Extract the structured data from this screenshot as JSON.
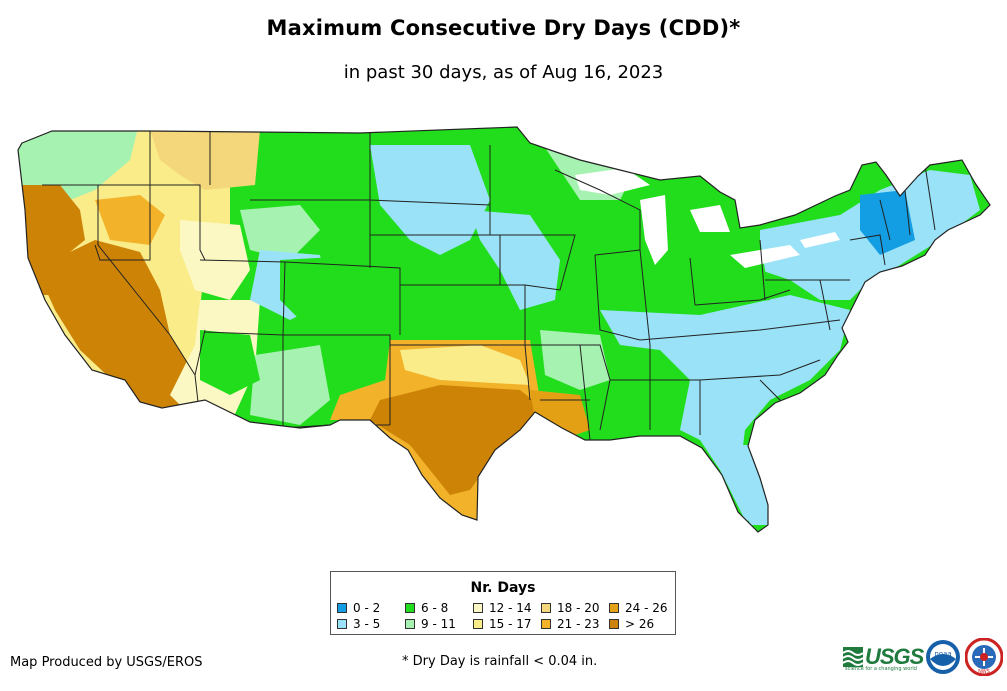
{
  "title": "Maximum Consecutive Dry Days (CDD)*",
  "subtitle": "in past 30 days, as of Aug 16, 2023",
  "legend": {
    "title": "Nr. Days",
    "classes": [
      {
        "label": "0 - 2",
        "color": "#139de3"
      },
      {
        "label": "3 - 5",
        "color": "#99e2f7"
      },
      {
        "label": "6 - 8",
        "color": "#21dd1c"
      },
      {
        "label": "9 - 11",
        "color": "#a6f2b0"
      },
      {
        "label": "12 - 14",
        "color": "#fcf8c4"
      },
      {
        "label": "15 - 17",
        "color": "#fbec8a"
      },
      {
        "label": "18 - 20",
        "color": "#f4d77a"
      },
      {
        "label": "21 - 23",
        "color": "#f2b32a"
      },
      {
        "label": "24 - 26",
        "color": "#e4a015"
      },
      {
        "label": "> 26",
        "color": "#cd8306"
      }
    ]
  },
  "credit": "Map Produced by USGS/EROS",
  "footnote": "* Dry Day is rainfall < 0.04 in.",
  "logos": {
    "usgs": "USGS",
    "usgs_tagline": "science for a changing world",
    "noaa": "noaa",
    "nws": "NWS"
  }
}
